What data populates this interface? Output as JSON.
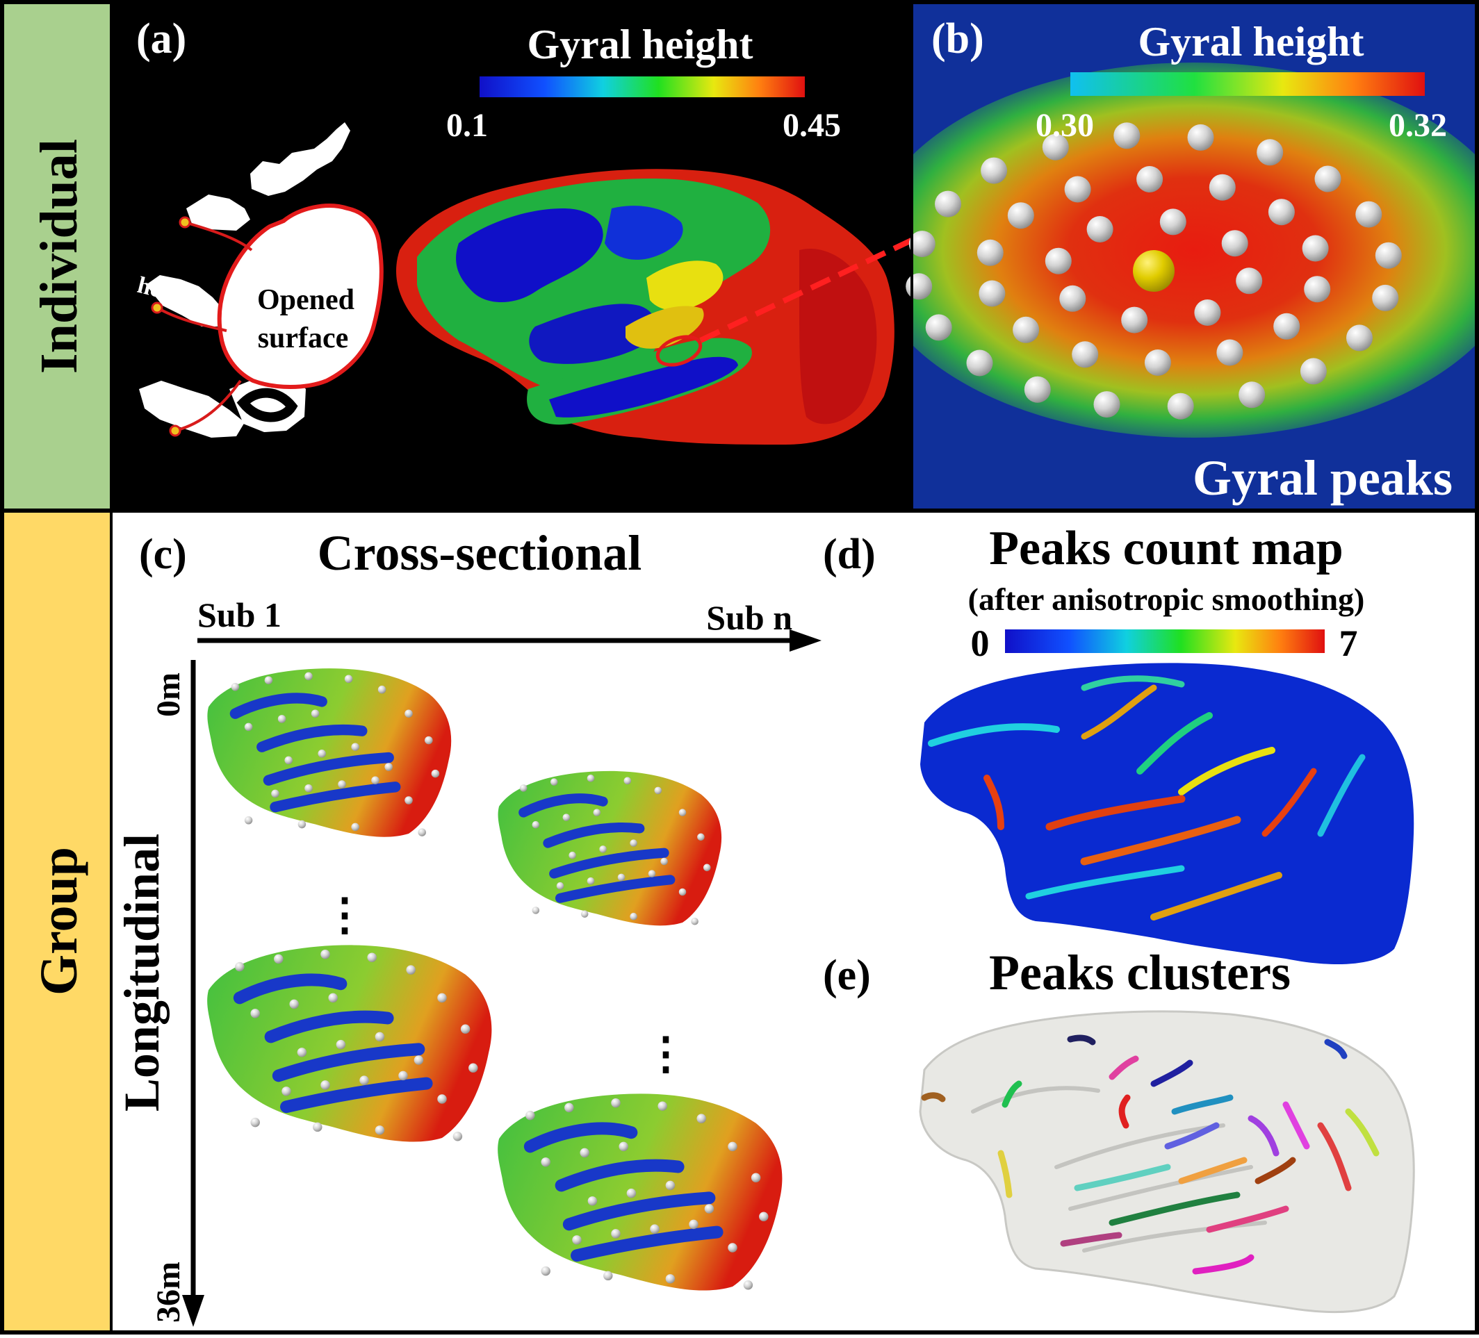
{
  "rows": {
    "individual": "Individual",
    "group": "Group"
  },
  "panel_a": {
    "label": "(a)",
    "colorbar": {
      "title": "Gyral height",
      "min": "0.1",
      "max": "0.45"
    },
    "annot_height": "height",
    "annot_opened_1": "Opened",
    "annot_opened_2": "surface"
  },
  "panel_b": {
    "label": "(b)",
    "colorbar": {
      "title": "Gyral height",
      "min": "0.30",
      "max": "0.32"
    },
    "caption": "Gyral peaks"
  },
  "panel_c": {
    "label": "(c)",
    "title": "Cross-sectional",
    "sub_first": "Sub 1",
    "sub_last": "Sub n",
    "axis_vertical": "Longitudinal",
    "time_start": "0m",
    "time_end": "36m",
    "ellipsis": "⋮"
  },
  "panel_d": {
    "label": "(d)",
    "title": "Peaks count map",
    "subtitle": "(after anisotropic smoothing)",
    "colorbar": {
      "min": "0",
      "max": "7"
    }
  },
  "panel_e": {
    "label": "(e)",
    "title": "Peaks clusters"
  },
  "colors": {
    "individual_band": "#a9d08e",
    "group_band": "#ffd966",
    "arrow": "#ff2020",
    "peak": "#d9d9d9",
    "peak_main": "#e6d200"
  }
}
